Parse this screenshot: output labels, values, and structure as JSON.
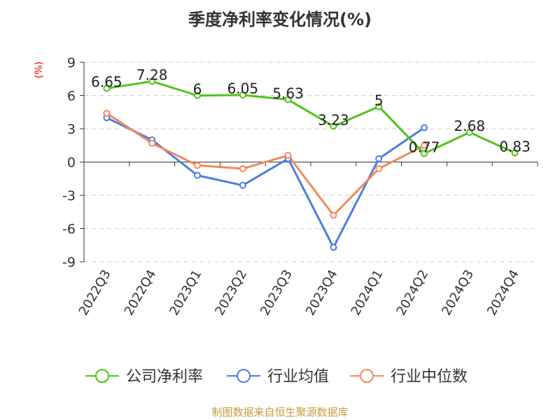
{
  "chart_data": {
    "type": "line",
    "title": "季度净利率变化情况(%)",
    "ylabel": "(%)",
    "categories": [
      "2022Q3",
      "2022Q4",
      "2023Q1",
      "2023Q2",
      "2023Q3",
      "2023Q4",
      "2024Q1",
      "2024Q2",
      "2024Q3",
      "2024Q4"
    ],
    "ylim": [
      -9,
      9
    ],
    "yticks": [
      9,
      6,
      3,
      0,
      -3,
      -6,
      -9
    ],
    "grid": true,
    "legend_position": "bottom",
    "series": [
      {
        "name": "公司净利率",
        "color": "#52c41a",
        "show_labels": true,
        "values": [
          6.65,
          7.28,
          6,
          6.05,
          5.63,
          3.23,
          5,
          0.77,
          2.68,
          0.83
        ]
      },
      {
        "name": "行业均值",
        "color": "#4a7fdc",
        "show_labels": false,
        "values": [
          4.0,
          2.0,
          -1.2,
          -2.1,
          0.3,
          -7.7,
          0.3,
          3.1,
          null,
          null
        ]
      },
      {
        "name": "行业中位数",
        "color": "#f2895b",
        "show_labels": false,
        "values": [
          4.4,
          1.7,
          -0.3,
          -0.6,
          0.6,
          -4.8,
          -0.6,
          1.5,
          null,
          null
        ]
      }
    ]
  },
  "footer": "制图数据来自恒生聚源数据库"
}
